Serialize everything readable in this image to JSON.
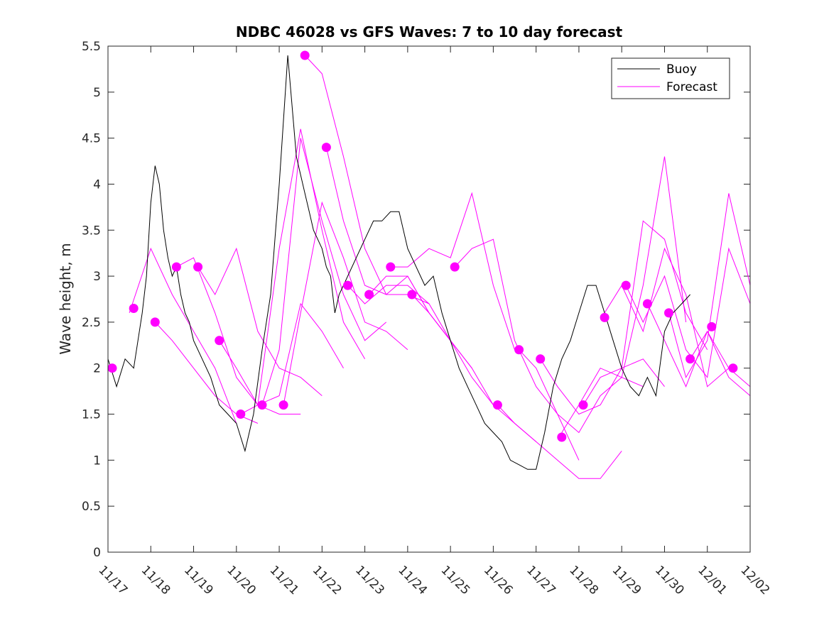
{
  "chart_data": {
    "type": "line",
    "title": "NDBC 46028 vs GFS Waves: 7 to 10 day forecast",
    "xlabel": "",
    "ylabel": "Wave height, m",
    "xlim": [
      0,
      15
    ],
    "ylim": [
      0,
      5.5
    ],
    "x_tick_values": [
      0,
      1,
      2,
      3,
      4,
      5,
      6,
      7,
      8,
      9,
      10,
      11,
      12,
      13,
      14,
      15
    ],
    "x_tick_labels": [
      "11/17",
      "11/18",
      "11/19",
      "11/20",
      "11/21",
      "11/22",
      "11/23",
      "11/24",
      "11/25",
      "11/26",
      "11/27",
      "11/28",
      "11/29",
      "11/30",
      "12/01",
      "12/02"
    ],
    "y_ticks": [
      0,
      0.5,
      1,
      1.5,
      2,
      2.5,
      3,
      3.5,
      4,
      4.5,
      5,
      5.5
    ],
    "y_tick_labels": [
      "0",
      "0.5",
      "1",
      "1.5",
      "2",
      "2.5",
      "3",
      "3.5",
      "4",
      "4.5",
      "5",
      "5.5"
    ],
    "legend": {
      "position": "top-right",
      "entries": [
        "Buoy",
        "Forecast"
      ]
    },
    "colors": {
      "buoy": "#000000",
      "forecast": "#ff00ff"
    },
    "buoy": {
      "name": "Buoy",
      "x": [
        0,
        0.2,
        0.4,
        0.6,
        0.8,
        0.9,
        1.0,
        1.1,
        1.2,
        1.3,
        1.4,
        1.5,
        1.6,
        1.7,
        1.8,
        1.9,
        2.0,
        2.2,
        2.4,
        2.6,
        2.8,
        3.0,
        3.2,
        3.4,
        3.6,
        3.8,
        3.9,
        4.0,
        4.2,
        4.4,
        4.6,
        4.7,
        4.8,
        4.9,
        5.0,
        5.1,
        5.2,
        5.3,
        5.4,
        5.5,
        5.6,
        5.8,
        6.0,
        6.2,
        6.4,
        6.6,
        6.8,
        7.0,
        7.2,
        7.4,
        7.6,
        7.8,
        8.0,
        8.2,
        8.4,
        8.6,
        8.8,
        9.0,
        9.2,
        9.4,
        9.6,
        9.8,
        10.0,
        10.2,
        10.4,
        10.6,
        10.8,
        11.0,
        11.2,
        11.4,
        11.6,
        11.8,
        12.0,
        12.2,
        12.4,
        12.6,
        12.8,
        13.0,
        13.2,
        13.4,
        13.6,
        13.8,
        14.0,
        14.2,
        14.4,
        14.6,
        14.8,
        15.0
      ],
      "y": [
        2.1,
        1.8,
        2.1,
        2.0,
        2.6,
        3.0,
        3.8,
        4.2,
        4.0,
        3.5,
        3.2,
        3.0,
        3.1,
        2.8,
        2.6,
        2.5,
        2.3,
        2.1,
        1.9,
        1.6,
        1.5,
        1.4,
        1.1,
        1.5,
        2.2,
        2.8,
        3.4,
        4.0,
        5.4,
        4.3,
        3.9,
        3.7,
        3.5,
        3.4,
        3.3,
        3.1,
        3.0,
        2.6,
        2.8,
        2.9,
        3.0,
        3.2,
        3.4,
        3.6,
        3.6,
        3.7,
        3.7,
        3.3,
        3.1,
        2.9,
        3.0,
        2.6,
        2.3,
        2.0,
        1.8,
        1.6,
        1.4,
        1.3,
        1.2,
        1.0,
        0.95,
        0.9,
        0.9,
        1.3,
        1.8,
        2.1,
        2.3,
        2.6,
        2.9,
        2.9,
        2.6,
        2.3,
        2.0,
        1.8,
        1.7,
        1.9,
        1.7,
        2.4,
        2.6,
        2.7,
        2.8,
        null,
        null,
        null,
        null,
        null,
        null,
        null
      ]
    },
    "forecast_series": [
      {
        "x": [
          0.5,
          1.0,
          1.5,
          2.0,
          2.5,
          3.0
        ],
        "y": [
          2.6,
          3.3,
          2.8,
          2.4,
          2.0,
          1.4
        ]
      },
      {
        "x": [
          1.1,
          1.5,
          2.0,
          2.5,
          3.0,
          3.5
        ],
        "y": [
          2.5,
          2.3,
          2.0,
          1.7,
          1.5,
          1.4
        ]
      },
      {
        "x": [
          1.6,
          2.0,
          2.5,
          3.0,
          3.5,
          4.0,
          4.5
        ],
        "y": [
          3.1,
          3.2,
          2.6,
          1.9,
          1.6,
          1.5,
          1.5
        ]
      },
      {
        "x": [
          2.1,
          2.5,
          3.0,
          3.5,
          4.0,
          4.5,
          5.0
        ],
        "y": [
          3.1,
          2.8,
          3.3,
          2.4,
          2.0,
          1.9,
          1.7
        ]
      },
      {
        "x": [
          2.6,
          3.0,
          3.5,
          4.0,
          4.5,
          5.0,
          5.5
        ],
        "y": [
          2.3,
          2.0,
          1.6,
          1.7,
          2.7,
          2.4,
          2.0
        ]
      },
      {
        "x": [
          3.1,
          3.5,
          4.0,
          4.5,
          5.0,
          5.5,
          6.0
        ],
        "y": [
          1.5,
          1.6,
          3.3,
          4.6,
          3.5,
          2.5,
          2.1
        ]
      },
      {
        "x": [
          3.6,
          4.0,
          4.5,
          5.0,
          5.5,
          6.0,
          6.5
        ],
        "y": [
          1.6,
          2.2,
          4.5,
          3.6,
          2.8,
          2.3,
          2.5
        ]
      },
      {
        "x": [
          4.1,
          4.5,
          5.0,
          5.5,
          6.0,
          6.5,
          7.0
        ],
        "y": [
          1.6,
          2.6,
          3.8,
          3.2,
          2.5,
          2.4,
          2.2
        ]
      },
      {
        "x": [
          4.6,
          5.0,
          5.5,
          6.0,
          6.5,
          7.0,
          7.5
        ],
        "y": [
          5.4,
          5.2,
          4.3,
          3.3,
          2.8,
          2.8,
          2.7
        ]
      },
      {
        "x": [
          5.1,
          5.5,
          6.0,
          6.5,
          7.0,
          7.5,
          8.0
        ],
        "y": [
          4.4,
          3.6,
          2.9,
          2.8,
          3.0,
          2.6,
          2.3
        ]
      },
      {
        "x": [
          5.6,
          6.0,
          6.5,
          7.0,
          7.5,
          8.0,
          8.5
        ],
        "y": [
          2.9,
          2.7,
          2.9,
          2.9,
          2.7,
          2.3,
          2.0
        ]
      },
      {
        "x": [
          6.1,
          6.5,
          7.0,
          7.5,
          8.0,
          8.5,
          9.0
        ],
        "y": [
          2.8,
          3.0,
          3.0,
          2.6,
          2.3,
          1.9,
          1.6
        ]
      },
      {
        "x": [
          6.6,
          7.0,
          7.5,
          8.0,
          8.5,
          9.0,
          9.5
        ],
        "y": [
          3.1,
          3.1,
          3.3,
          3.2,
          3.9,
          2.9,
          2.2
        ]
      },
      {
        "x": [
          7.1,
          7.5,
          8.0,
          8.5,
          9.0,
          9.5,
          10.0
        ],
        "y": [
          2.8,
          2.6,
          2.3,
          2.0,
          1.6,
          1.4,
          1.2
        ]
      },
      {
        "x": [
          8.1,
          8.5,
          9.0,
          9.5,
          10.0,
          10.5,
          11.0
        ],
        "y": [
          3.1,
          3.3,
          3.4,
          2.3,
          1.8,
          1.5,
          1.0
        ]
      },
      {
        "x": [
          9.1,
          9.5,
          10.0,
          10.5,
          11.0,
          11.5,
          12.0
        ],
        "y": [
          1.6,
          1.4,
          1.2,
          1.0,
          0.8,
          0.8,
          1.1
        ]
      },
      {
        "x": [
          9.6,
          10.0,
          10.5,
          11.0,
          11.5,
          12.0,
          12.5
        ],
        "y": [
          2.2,
          2.0,
          1.5,
          1.3,
          1.7,
          1.9,
          1.8
        ]
      },
      {
        "x": [
          10.1,
          10.5,
          11.0,
          11.5,
          12.0,
          12.5,
          13.0
        ],
        "y": [
          2.1,
          1.8,
          1.5,
          1.6,
          2.0,
          2.1,
          1.8
        ]
      },
      {
        "x": [
          10.6,
          11.0,
          11.5,
          12.0,
          12.5,
          13.0,
          13.5
        ],
        "y": [
          1.3,
          1.6,
          2.0,
          1.9,
          2.9,
          4.3,
          2.5
        ]
      },
      {
        "x": [
          11.1,
          11.5,
          12.0,
          12.5,
          13.0,
          13.5,
          14.0
        ],
        "y": [
          1.6,
          1.9,
          2.0,
          3.6,
          3.4,
          2.6,
          2.2
        ]
      },
      {
        "x": [
          11.6,
          12.0,
          12.5,
          13.0,
          13.5,
          14.0,
          14.5
        ],
        "y": [
          2.6,
          2.9,
          2.4,
          3.3,
          2.8,
          1.8,
          2.0
        ]
      },
      {
        "x": [
          12.1,
          12.5,
          13.0,
          13.5,
          14.0,
          14.5,
          15.0
        ],
        "y": [
          2.9,
          2.5,
          3.0,
          2.2,
          1.9,
          3.3,
          2.7
        ]
      },
      {
        "x": [
          12.6,
          13.0,
          13.5,
          14.0,
          14.5,
          15.0
        ],
        "y": [
          2.7,
          2.3,
          1.8,
          2.4,
          1.9,
          1.7
        ]
      },
      {
        "x": [
          13.1,
          13.5,
          14.0,
          14.5,
          15.0
        ],
        "y": [
          2.6,
          1.9,
          2.3,
          3.9,
          2.9
        ]
      },
      {
        "x": [
          13.6,
          14.0,
          14.5,
          15.0
        ],
        "y": [
          2.1,
          2.4,
          2.0,
          1.8
        ]
      }
    ],
    "forecast_markers": {
      "x": [
        0.1,
        0.6,
        1.1,
        1.6,
        2.1,
        2.6,
        3.1,
        3.6,
        4.1,
        4.6,
        5.1,
        5.6,
        6.1,
        6.6,
        7.1,
        8.1,
        9.1,
        9.6,
        10.1,
        10.6,
        11.1,
        11.6,
        12.1,
        12.6,
        13.1,
        13.6,
        14.1,
        14.6
      ],
      "y": [
        2.0,
        2.65,
        2.5,
        3.1,
        3.1,
        2.3,
        1.5,
        1.6,
        1.6,
        5.4,
        4.4,
        2.9,
        2.8,
        3.1,
        2.8,
        3.1,
        1.6,
        2.2,
        2.1,
        1.25,
        1.6,
        2.55,
        2.9,
        2.7,
        2.6,
        2.1,
        2.45,
        2.0
      ]
    }
  }
}
